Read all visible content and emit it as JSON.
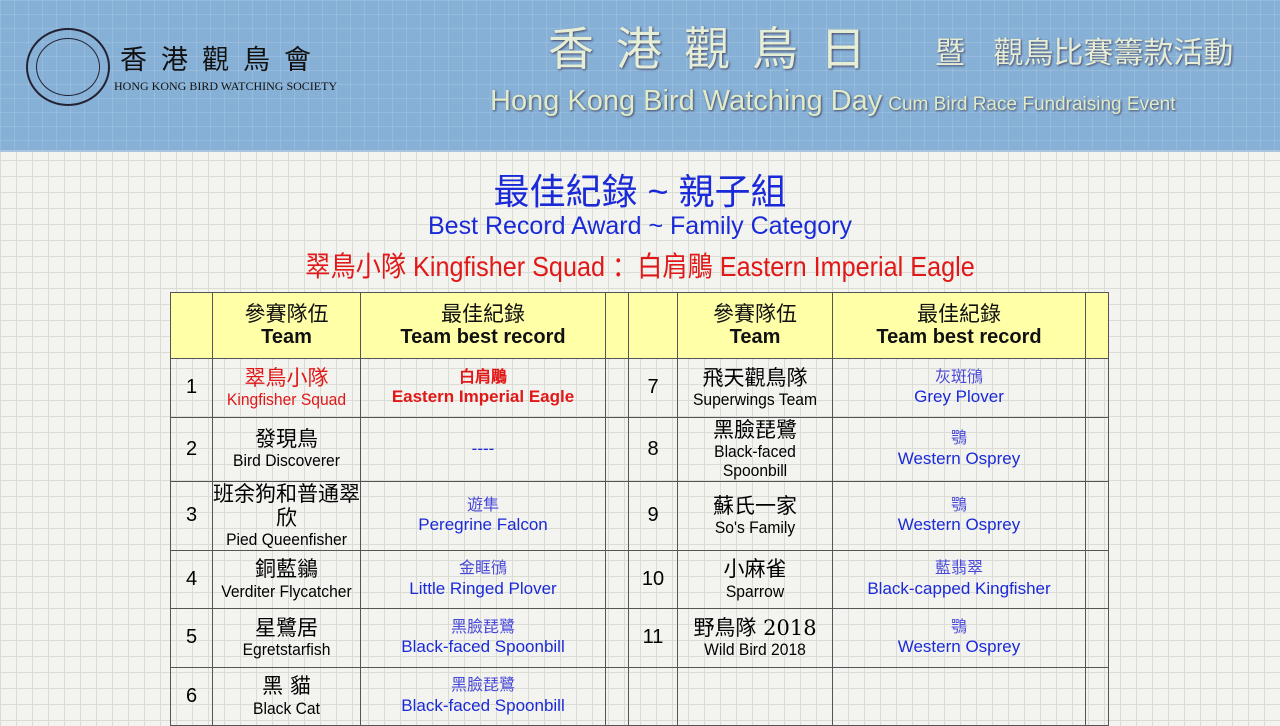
{
  "header": {
    "society_zh": "香港觀鳥會",
    "society_en": "HONG KONG BIRD WATCHING SOCIETY",
    "event_zh": "香港觀鳥日",
    "event_zh2": "暨 觀鳥比賽籌款活動",
    "event_en": "Hong Kong Bird Watching Day",
    "event_en2": "Cum Bird Race Fundraising Event"
  },
  "title": {
    "zh": "最佳紀錄 ~ 親子組",
    "en": "Best Record Award ~ Family Category",
    "winner": "翠鳥小隊 Kingfisher Squad ：白肩鵰 Eastern Imperial Eagle"
  },
  "table": {
    "headers": {
      "team_zh": "參賽隊伍",
      "team_en": "Team",
      "record_zh": "最佳紀錄",
      "record_en": "Team best record"
    },
    "rows": [
      {
        "no": "1",
        "team_zh": "翠鳥小隊",
        "team_en": "Kingfisher Squad",
        "rec_zh": "白肩鵰",
        "rec_en": "Eastern Imperial Eagle"
      },
      {
        "no": "2",
        "team_zh": "發現鳥",
        "team_en": "Bird Discoverer",
        "rec_zh": "",
        "rec_en": "----"
      },
      {
        "no": "3",
        "team_zh": "班余狗和普通翠欣",
        "team_en": "Pied Queenfisher",
        "rec_zh": "遊隼",
        "rec_en": "Peregrine Falcon"
      },
      {
        "no": "4",
        "team_zh": "銅藍鶲",
        "team_en": "Verditer Flycatcher",
        "rec_zh": "金眶鴴",
        "rec_en": "Little Ringed Plover"
      },
      {
        "no": "5",
        "team_zh": "星鷺居",
        "team_en": "Egretstarfish",
        "rec_zh": "黑臉琵鷺",
        "rec_en": "Black-faced Spoonbill"
      },
      {
        "no": "6",
        "team_zh": "黑 貓",
        "team_en": "Black Cat",
        "rec_zh": "黑臉琵鷺",
        "rec_en": "Black-faced Spoonbill"
      },
      {
        "no": "7",
        "team_zh": "飛天觀鳥隊",
        "team_en": "Superwings Team",
        "rec_zh": "灰斑鴴",
        "rec_en": "Grey Plover"
      },
      {
        "no": "8",
        "team_zh": "黑臉琵鷺",
        "team_en": "Black-faced Spoonbill",
        "rec_zh": "鶚",
        "rec_en": "Western Osprey"
      },
      {
        "no": "9",
        "team_zh": "蘇氏一家",
        "team_en": "So's Family",
        "rec_zh": "鶚",
        "rec_en": "Western Osprey"
      },
      {
        "no": "10",
        "team_zh": "小麻雀",
        "team_en": "Sparrow",
        "rec_zh": "藍翡翠",
        "rec_en": "Black-capped Kingfisher"
      },
      {
        "no": "11",
        "team_zh": "野鳥隊 2018",
        "team_en": "Wild Bird 2018",
        "rec_zh": "鶚",
        "rec_en": "Western Osprey"
      }
    ]
  },
  "colors": {
    "title_blue": "#1a2ad8",
    "winner_red": "#e01818",
    "header_yellow": "#ffffa8",
    "banner_blue": "#86b0d6"
  }
}
